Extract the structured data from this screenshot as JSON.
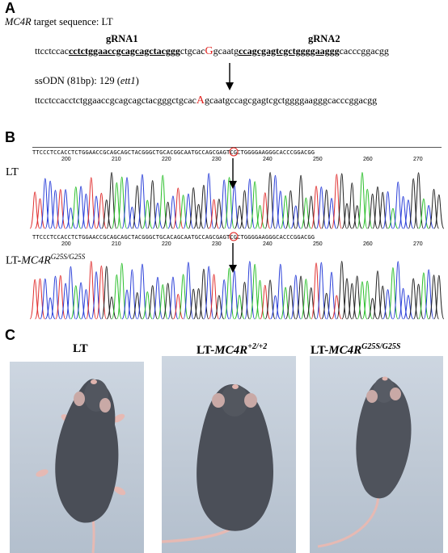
{
  "panelA": {
    "letter": "A",
    "target_gene": "MC4R",
    "target_rest": " target sequence: LT",
    "grna1_label": "gRNA1",
    "grna2_label": "gRNA2",
    "ref_seq": {
      "pre": "ttcctccac",
      "grna1": "cctctggaaccgcagcagctacggg",
      "mid1": "ctgcac",
      "mut": "G",
      "mid2": "gcaatg",
      "grna2": "ccagcgagtcgctggggaaggg",
      "post": "cacccggacgg"
    },
    "ssodn_label": "ssODN (81bp): 129 (",
    "ssodn_italic": "ett1",
    "ssodn_close": ")",
    "edit_seq": {
      "pre": "ttcctccacctctggaaccgcagcagctacgggctgcac",
      "mut": "A",
      "post": "gcaatgccagcgagtcgctggggaagggcacccggacgg"
    }
  },
  "panelB": {
    "letter": "B",
    "track1": {
      "seq": "TTCCCTCCACCTCTGGAACCGCAGCAGCTACGGGCTGCACGGCAATGCCAGCGAGTCGCTGGGGAAGGGCACCCGGACGG",
      "ticks": [
        "200",
        "210",
        "220",
        "230",
        "240",
        "250",
        "260",
        "270"
      ],
      "label": "LT",
      "highlight_base": "G"
    },
    "track2": {
      "seq": "TTCCCTCCACCTCTGGAACCGCAGCAGCTACGGGCTGCACAGCAATGCCAGCGAGTCGCTGGGGAAGGGCACCCGGACGG",
      "ticks": [
        "200",
        "210",
        "220",
        "230",
        "240",
        "250",
        "260",
        "270"
      ],
      "label_plain": "LT-",
      "label_gene": "MC4R",
      "label_sup": "G25S/G25S",
      "highlight_base": "A"
    },
    "trace_colors": {
      "A": "#2bbf2b",
      "C": "#2a3fd8",
      "G": "#222222",
      "T": "#e03030"
    }
  },
  "panelC": {
    "letter": "C",
    "photos": [
      {
        "title_plain": "LT",
        "title_gene": "",
        "title_sup": ""
      },
      {
        "title_plain": "LT-",
        "title_gene": "MC4R",
        "title_sup": "+2/+2"
      },
      {
        "title_plain": "LT-",
        "title_gene": "MC4R",
        "title_sup": "G25S/G25S"
      }
    ]
  }
}
